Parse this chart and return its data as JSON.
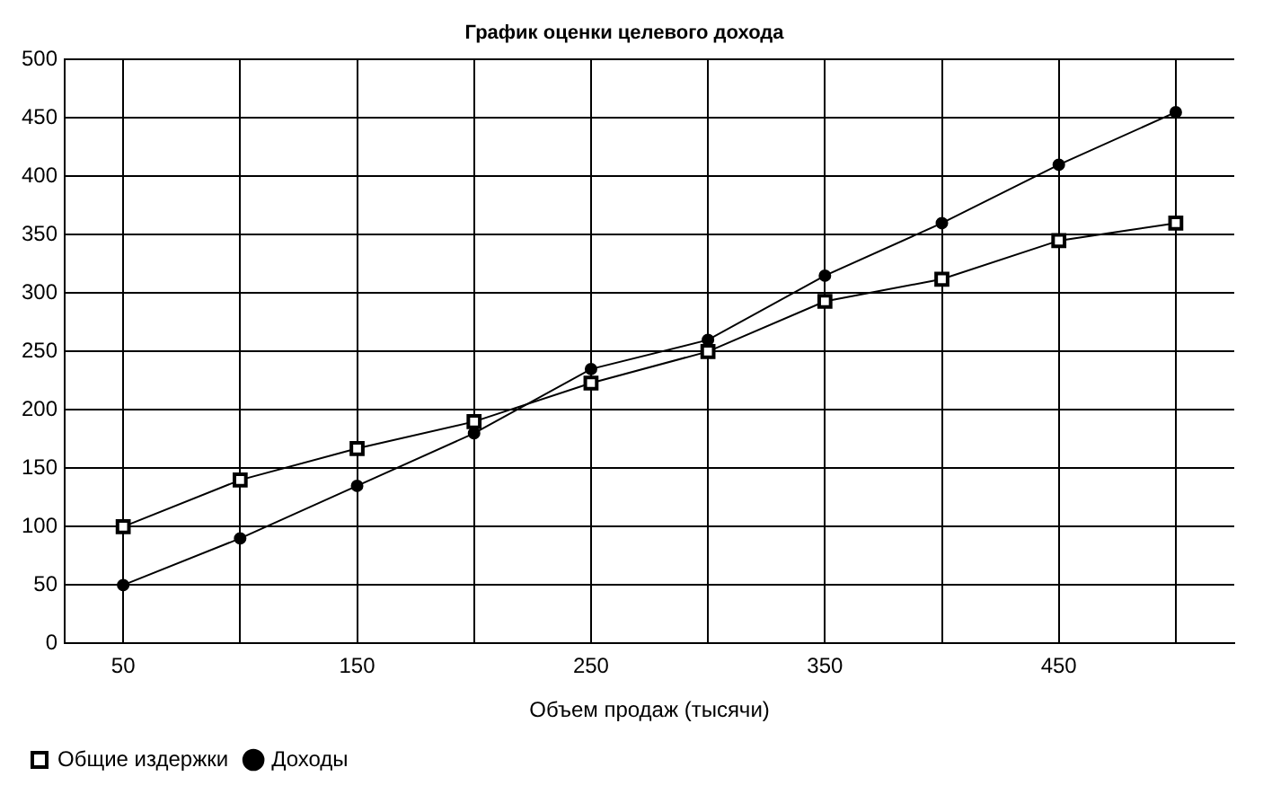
{
  "chart_data": {
    "type": "line",
    "title": "График оценки целевого дохода",
    "xlabel": "Объем продаж (тысячи)",
    "categories": [
      "50",
      null,
      "150",
      null,
      "250",
      null,
      "350",
      null,
      "450",
      null
    ],
    "series": [
      {
        "name": "Общие издержки",
        "color": "#000000",
        "marker": "square",
        "values": [
          100,
          140,
          167,
          190,
          223,
          250,
          293,
          312,
          345,
          360
        ]
      },
      {
        "name": "Доходы",
        "color": "#000000",
        "marker": "circle",
        "values": [
          50,
          90,
          135,
          180,
          235,
          260,
          315,
          360,
          410,
          455
        ]
      }
    ],
    "ylim": [
      0,
      500
    ],
    "yticks": [
      0,
      50,
      100,
      150,
      200,
      250,
      300,
      350,
      400,
      450,
      500
    ],
    "grid": true,
    "legend": "bottom left"
  }
}
